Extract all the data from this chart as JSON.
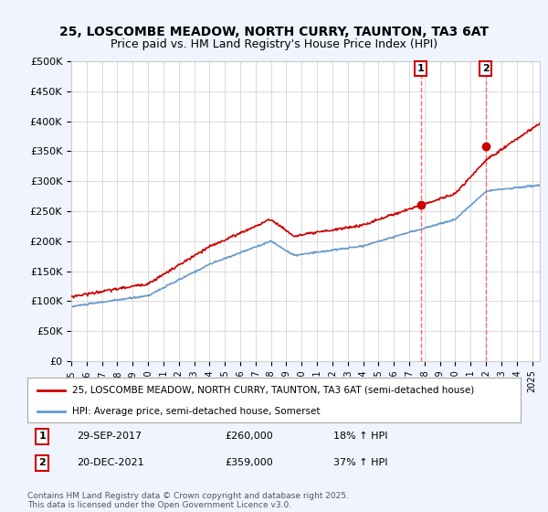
{
  "title_line1": "25, LOSCOMBE MEADOW, NORTH CURRY, TAUNTON, TA3 6AT",
  "title_line2": "Price paid vs. HM Land Registry's House Price Index (HPI)",
  "ylim": [
    0,
    500000
  ],
  "yticks": [
    0,
    50000,
    100000,
    150000,
    200000,
    250000,
    300000,
    350000,
    400000,
    450000,
    500000
  ],
  "ytick_labels": [
    "£0",
    "£50K",
    "£100K",
    "£150K",
    "£200K",
    "£250K",
    "£300K",
    "£350K",
    "£400K",
    "£450K",
    "£500K"
  ],
  "xlim_start": 1995.0,
  "xlim_end": 2025.5,
  "transaction1_x": 2017.747,
  "transaction1_y": 260000,
  "transaction1_label": "29-SEP-2017",
  "transaction1_price": "£260,000",
  "transaction1_hpi": "18% ↑ HPI",
  "transaction2_x": 2021.97,
  "transaction2_y": 359000,
  "transaction2_label": "20-DEC-2021",
  "transaction2_price": "£359,000",
  "transaction2_hpi": "37% ↑ HPI",
  "red_line_color": "#cc0000",
  "blue_line_color": "#6699cc",
  "vline_color": "#ff6666",
  "background_color": "#f0f4ff",
  "plot_bg_color": "#ffffff",
  "legend_line1": "25, LOSCOMBE MEADOW, NORTH CURRY, TAUNTON, TA3 6AT (semi-detached house)",
  "legend_line2": "HPI: Average price, semi-detached house, Somerset",
  "footer": "Contains HM Land Registry data © Crown copyright and database right 2025.\nThis data is licensed under the Open Government Licence v3.0."
}
